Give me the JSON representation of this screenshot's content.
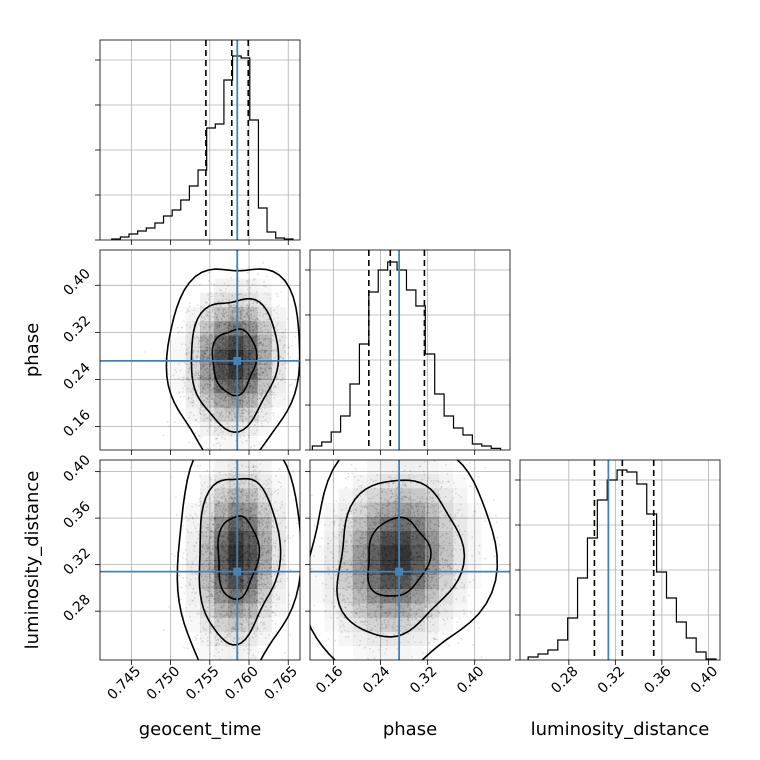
{
  "chart_data": {
    "type": "corner",
    "parameters": [
      "geocent_time",
      "phase",
      "luminosity_distance"
    ],
    "ranges": {
      "geocent_time": [
        0.741,
        0.7665
      ],
      "phase": [
        0.12,
        0.46
      ],
      "luminosity_distance": [
        0.238,
        0.41
      ]
    },
    "ticks": {
      "geocent_time": [
        0.745,
        0.75,
        0.755,
        0.76,
        0.765
      ],
      "phase": [
        0.16,
        0.24,
        0.32,
        0.4
      ],
      "luminosity_distance": [
        0.28,
        0.32,
        0.36,
        0.4
      ]
    },
    "tick_labels": {
      "geocent_time": [
        "0.745",
        "0.750",
        "0.755",
        "0.760",
        "0.765"
      ],
      "phase": [
        "0.16",
        "0.24",
        "0.32",
        "0.40"
      ],
      "luminosity_distance": [
        "0.28",
        "0.32",
        "0.36",
        "0.40"
      ]
    },
    "truths": {
      "geocent_time": 0.7585,
      "phase": 0.2715,
      "luminosity_distance": 0.314
    },
    "quantiles": {
      "geocent_time": [
        0.7545,
        0.7578,
        0.7599
      ],
      "phase": [
        0.22,
        0.2565,
        0.3145
      ],
      "luminosity_distance": [
        0.302,
        0.326,
        0.353
      ]
    },
    "histograms": {
      "geocent_time": {
        "edges": [
          0.7425,
          0.7436,
          0.7447,
          0.7458,
          0.7469,
          0.748,
          0.7491,
          0.7502,
          0.7513,
          0.7524,
          0.7535,
          0.7546,
          0.7557,
          0.7568,
          0.7579,
          0.759,
          0.7601,
          0.7612,
          0.7623,
          0.7634,
          0.7645,
          0.7656
        ],
        "counts": [
          0.005,
          0.015,
          0.03,
          0.045,
          0.06,
          0.085,
          0.12,
          0.15,
          0.2,
          0.27,
          0.35,
          0.56,
          0.58,
          0.8,
          0.92,
          0.91,
          0.6,
          0.16,
          0.04,
          0.01,
          0.005
        ]
      },
      "phase": {
        "edges": [
          0.124,
          0.14,
          0.156,
          0.172,
          0.188,
          0.204,
          0.22,
          0.236,
          0.252,
          0.268,
          0.284,
          0.3,
          0.316,
          0.332,
          0.348,
          0.364,
          0.38,
          0.396,
          0.412,
          0.428,
          0.444
        ],
        "counts": [
          0.02,
          0.04,
          0.09,
          0.17,
          0.33,
          0.53,
          0.79,
          0.9,
          0.94,
          0.9,
          0.8,
          0.72,
          0.48,
          0.28,
          0.17,
          0.11,
          0.075,
          0.03,
          0.02,
          0.008
        ]
      },
      "luminosity_distance": {
        "edges": [
          0.245,
          0.2535,
          0.262,
          0.2705,
          0.279,
          0.2875,
          0.296,
          0.3045,
          0.313,
          0.3215,
          0.33,
          0.3385,
          0.347,
          0.3555,
          0.364,
          0.3725,
          0.381,
          0.3895,
          0.398,
          0.4065
        ],
        "counts": [
          0.015,
          0.03,
          0.05,
          0.1,
          0.21,
          0.41,
          0.61,
          0.8,
          0.9,
          0.95,
          0.94,
          0.88,
          0.73,
          0.44,
          0.31,
          0.19,
          0.11,
          0.04,
          0.005
        ]
      }
    },
    "density_2d": [
      {
        "x": "geocent_time",
        "y": "phase",
        "center": [
          0.7581,
          0.2715
        ],
        "spread": [
          0.0028,
          0.056
        ],
        "tilt": 0.05
      },
      {
        "x": "geocent_time",
        "y": "luminosity_distance",
        "center": [
          0.7585,
          0.327
        ],
        "spread": [
          0.0026,
          0.036
        ],
        "tilt": 0.08
      },
      {
        "x": "phase",
        "y": "luminosity_distance",
        "center": [
          0.268,
          0.326
        ],
        "spread": [
          0.053,
          0.034
        ],
        "tilt": 0.12
      }
    ],
    "contour_levels": [
      0.39,
      0.86,
      0.99
    ],
    "xlabel": [
      "geocent_time",
      "phase",
      "luminosity_distance"
    ],
    "ylabel": [
      "phase",
      "luminosity_distance"
    ],
    "grid": true,
    "colors": {
      "truth": "#4682b4",
      "lines": "#000000",
      "density": "#000000",
      "grid": "#b0b0b0"
    }
  }
}
